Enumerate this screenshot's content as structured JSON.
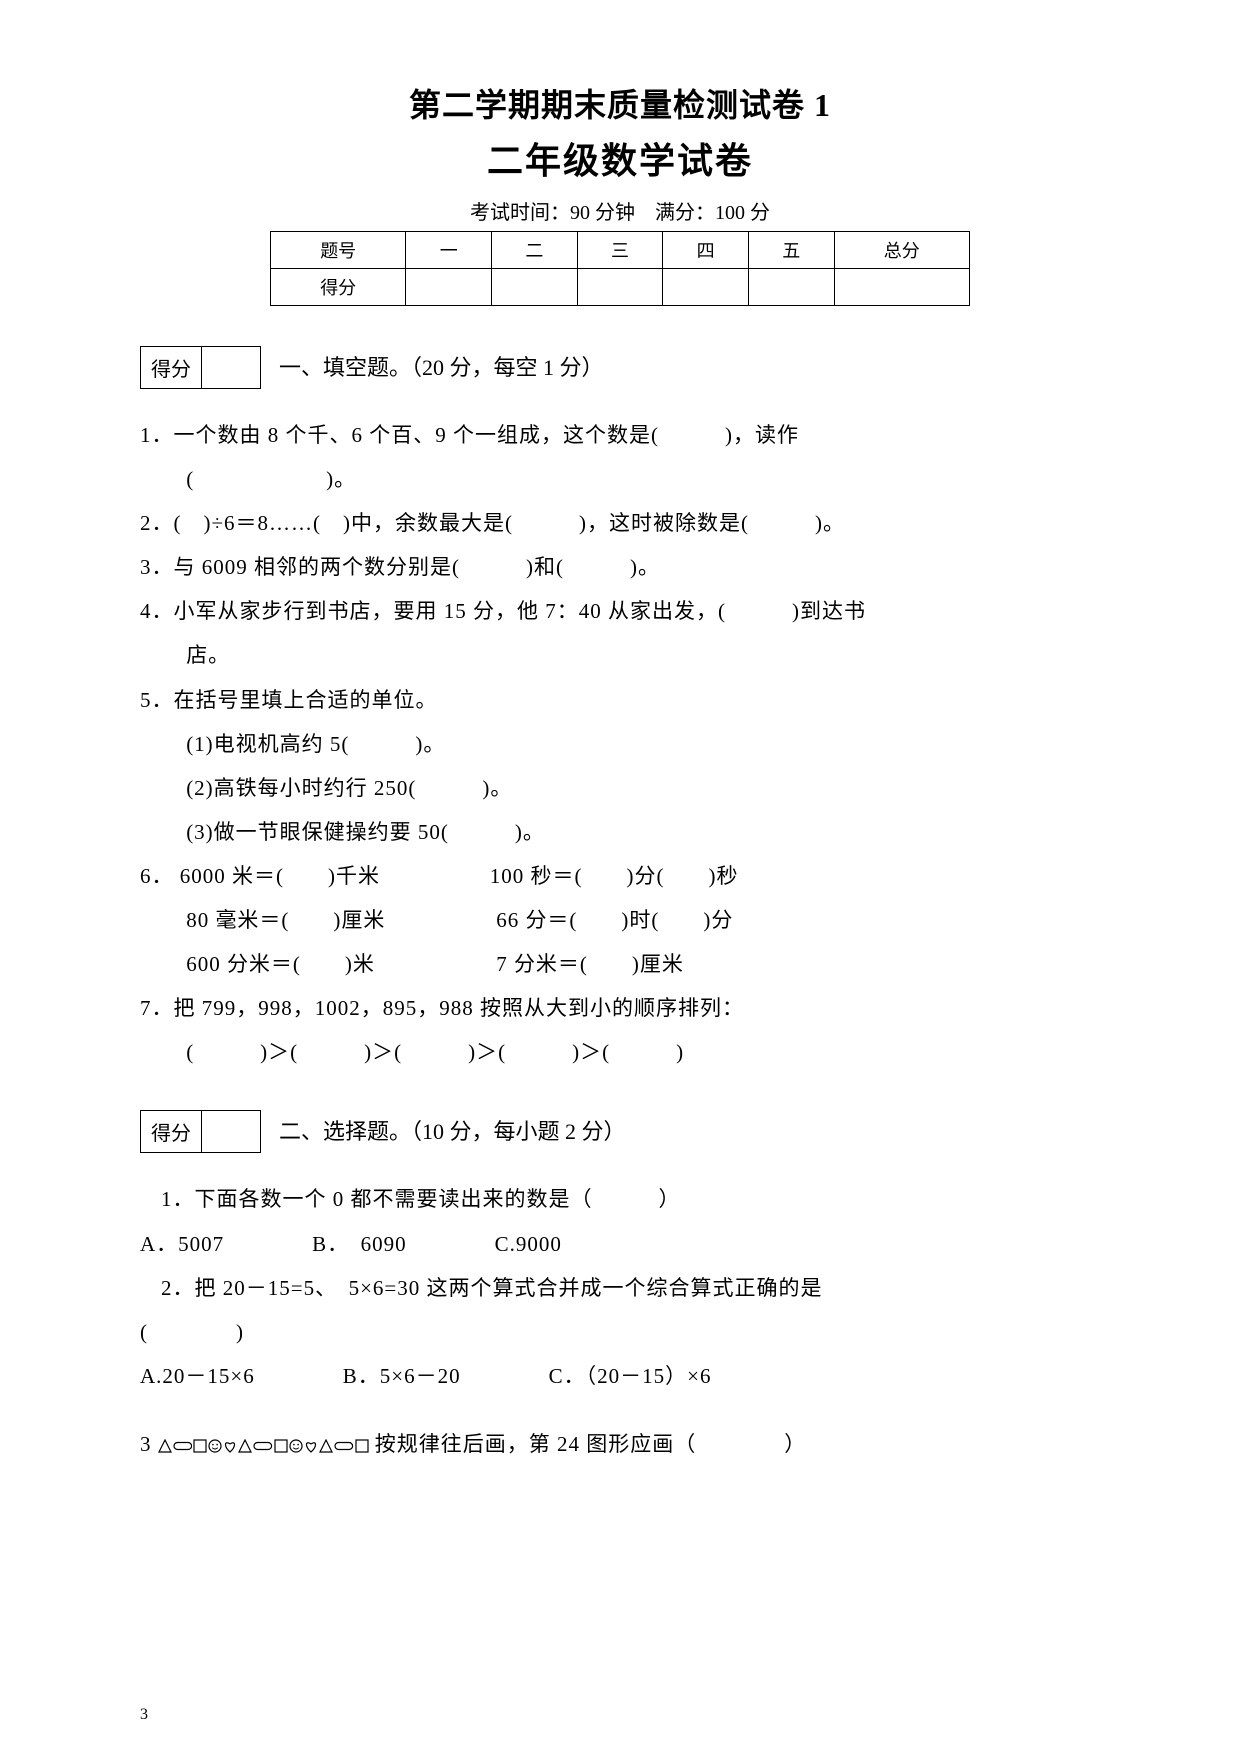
{
  "header": {
    "title1": "第二学期期末质量检测试卷 1",
    "title2": "二年级数学试卷",
    "examinfo": "考试时间：90 分钟　满分：100 分"
  },
  "score_table": {
    "row1": [
      "题号",
      "一",
      "二",
      "三",
      "四",
      "五",
      "总分"
    ],
    "row2_label": "得分"
  },
  "section1": {
    "score_label": "得分",
    "title": "一、填空题。（20 分，每空 1 分）",
    "q1a": "1．一个数由 8 个千、6 个百、9 个一组成，这个数是(　　　)，读作",
    "q1b": "(　　　　　　)。",
    "q2": "2．(　)÷6＝8……(　)中，余数最大是(　　　)，这时被除数是(　　　)。",
    "q3": "3．与 6009 相邻的两个数分别是(　　　)和(　　　)。",
    "q4a": "4．小军从家步行到书店，要用 15 分，他 7：40 从家出发，(　　　)到达书",
    "q4b": "店。",
    "q5": "5．在括号里填上合适的单位。",
    "q5_1": "(1)电视机高约 5(　　　)。",
    "q5_2": "(2)高铁每小时约行 250(　　　)。",
    "q5_3": "(3)做一节眼保健操约要 50(　　　)。",
    "q6": "6．",
    "q6_l1a": "6000 米＝(　　)千米",
    "q6_l1b": "100 秒＝(　　)分(　　)秒",
    "q6_l2a": "80 毫米＝(　　)厘米",
    "q6_l2b": "66 分＝(　　)时(　　)分",
    "q6_l3a": "600 分米＝(　　)米",
    "q6_l3b": "7 分米＝(　　)厘米",
    "q7": "7．把 799，998，1002，895，988 按照从大到小的顺序排列：",
    "q7b": "(　　　)＞(　　　)＞(　　　)＞(　　　)＞(　　　)"
  },
  "section2": {
    "score_label": "得分",
    "title": "二、选择题。（10 分，每小题 2 分）",
    "q1": "1．下面各数一个 0 都不需要读出来的数是（　　　）",
    "q1opts": "A．5007　　　　B．　6090　　　　C.9000",
    "q2a": "2．把 20－15=5、　5×6=30 这两个算式合并成一个综合算式正确的是",
    "q2b": "(　　　　)",
    "q2opts": "A.20－15×6　　　　B．5×6－20　　　　C．（20－15）×6",
    "q3_num": "3",
    "q3_tail": "按规律往后画，第 24 图形应画（　　　　）"
  },
  "shapes": {
    "sequence": [
      "triangle",
      "capsule",
      "rect",
      "smile",
      "heart",
      "triangle",
      "capsule",
      "rect",
      "smile",
      "heart",
      "triangle",
      "capsule",
      "rect"
    ],
    "stroke": "#000000",
    "fill": "none",
    "size": 14
  },
  "page_number": "3"
}
